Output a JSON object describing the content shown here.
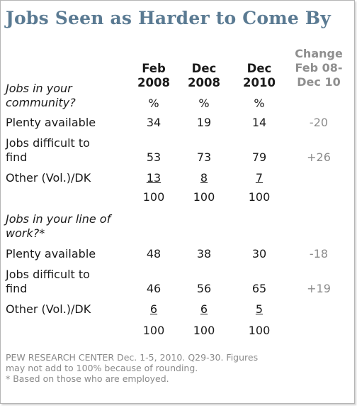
{
  "title": "Jobs Seen as Harder to Come By",
  "columns": [
    {
      "line1": "Feb",
      "line2": "2008"
    },
    {
      "line1": "Dec",
      "line2": "2008"
    },
    {
      "line1": "Dec",
      "line2": "2010"
    }
  ],
  "change_header": {
    "line1": "Change",
    "line2": "Feb 08-",
    "line3": "Dec 10"
  },
  "chart_data": {
    "type": "table",
    "title": "Jobs Seen as Harder to Come By",
    "columns": [
      "Feb 2008",
      "Dec 2008",
      "Dec 2010",
      "Change Feb 08-Dec 10"
    ],
    "sections": [
      {
        "question_line1": "Jobs in your",
        "question_line2": "community?",
        "unit": "%",
        "rows": [
          {
            "label_line1": "Plenty available",
            "label_line2": "",
            "values": [
              "34",
              "19",
              "14"
            ],
            "change": "-20"
          },
          {
            "label_line1": "Jobs difficult to",
            "label_line2": "find",
            "values": [
              "53",
              "73",
              "79"
            ],
            "change": "+26"
          },
          {
            "label_line1": "Other (Vol.)/DK",
            "label_line2": "",
            "values": [
              "13",
              "8",
              "7"
            ],
            "change": ""
          }
        ],
        "totals": [
          "100",
          "100",
          "100"
        ]
      },
      {
        "question_line1": "Jobs in your line of",
        "question_line2": "work?*",
        "rows": [
          {
            "label_line1": "Plenty available",
            "label_line2": "",
            "values": [
              "48",
              "38",
              "30"
            ],
            "change": "-18"
          },
          {
            "label_line1": "Jobs difficult to",
            "label_line2": "find",
            "values": [
              "46",
              "56",
              "65"
            ],
            "change": "+19"
          },
          {
            "label_line1": "Other (Vol.)/DK",
            "label_line2": "",
            "values": [
              "6",
              "6",
              "5"
            ],
            "change": ""
          }
        ],
        "totals": [
          "100",
          "100",
          "100"
        ]
      }
    ]
  },
  "footnote": {
    "line1": "PEW RESEARCH  CENTER Dec. 1-5, 2010. Q29-30. Figures",
    "line2": "may not add to 100% because of rounding.",
    "line3": "* Based on those who are employed."
  },
  "colors": {
    "title": "#5a7a92",
    "change": "#8f8f8f",
    "footnote": "#8a8a8a"
  }
}
